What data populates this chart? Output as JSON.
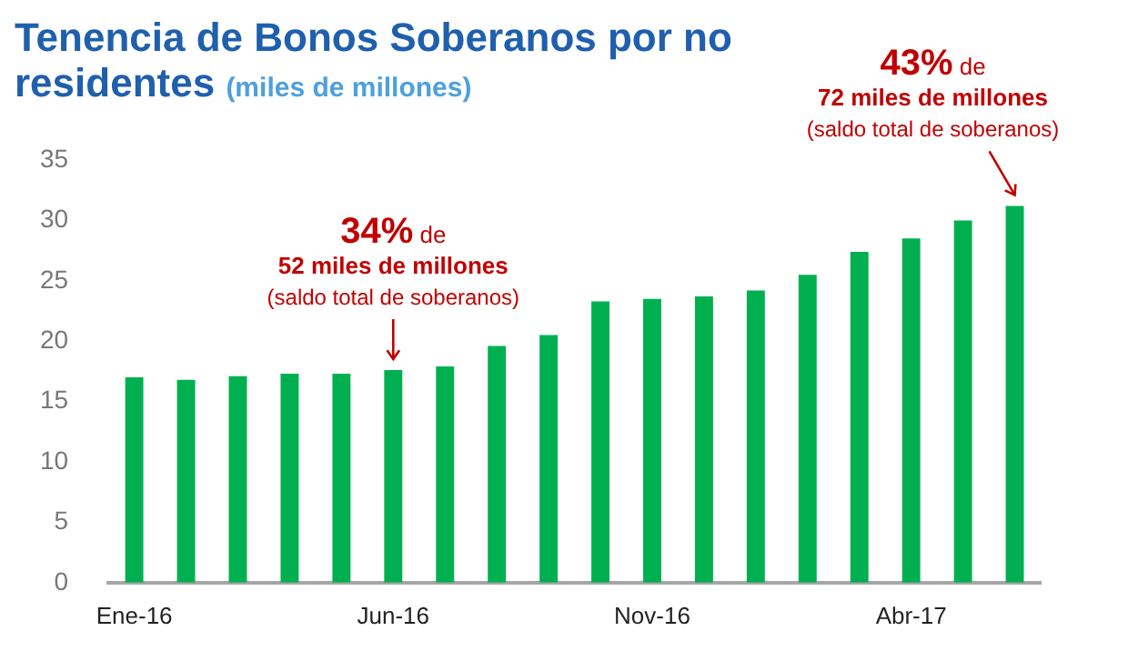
{
  "chart_data": {
    "type": "bar",
    "title": "Tenencia de Bonos Soberanos por no residentes",
    "subtitle": "(miles de millones)",
    "categories": [
      "Ene-16",
      null,
      null,
      null,
      null,
      "Jun-16",
      null,
      null,
      null,
      null,
      "Nov-16",
      null,
      null,
      null,
      null,
      "Abr-17",
      null,
      null
    ],
    "values": [
      17,
      16.8,
      17.1,
      17.3,
      17.3,
      17.6,
      17.9,
      19.6,
      20.5,
      23.3,
      23.5,
      23.7,
      24.2,
      25.5,
      27.4,
      28.5,
      30,
      31.2
    ],
    "color": "#00b050",
    "ylim": [
      0,
      35
    ],
    "yticks": [
      0,
      5,
      10,
      15,
      20,
      25,
      30,
      35
    ],
    "grid": false,
    "legend": false,
    "annotations": [
      {
        "text": "34% de\n52 miles de millones\n(saldo total de soberanos)",
        "x": "Jun-16",
        "y": 17.6
      },
      "43% de\n72 miles de millones\n(saldo total de soberanos)"
    ]
  }
}
